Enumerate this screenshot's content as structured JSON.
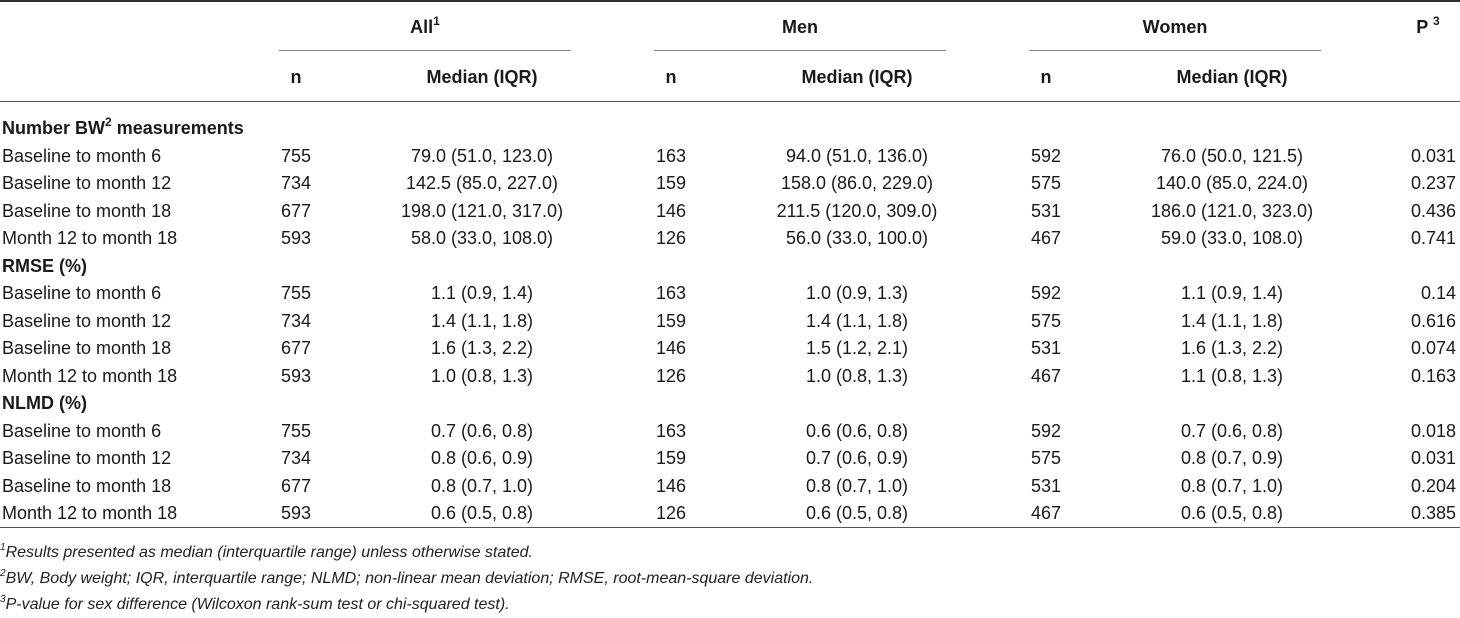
{
  "header": {
    "all": "All",
    "all_sup": "1",
    "men": "Men",
    "women": "Women",
    "p": "P",
    "p_sup": "3",
    "n": "n",
    "median": "Median (IQR)"
  },
  "sections": [
    {
      "title": "Number BW",
      "title_sup": "2",
      "title_suffix": " measurements",
      "rows": [
        {
          "label": "Baseline to month 6",
          "all_n": "755",
          "all_med": "79.0 (51.0, 123.0)",
          "men_n": "163",
          "men_med": "94.0 (51.0, 136.0)",
          "women_n": "592",
          "women_med": "76.0 (50.0, 121.5)",
          "p": "0.031"
        },
        {
          "label": "Baseline to month 12",
          "all_n": "734",
          "all_med": "142.5 (85.0, 227.0)",
          "men_n": "159",
          "men_med": "158.0 (86.0, 229.0)",
          "women_n": "575",
          "women_med": "140.0 (85.0, 224.0)",
          "p": "0.237"
        },
        {
          "label": "Baseline to month 18",
          "all_n": "677",
          "all_med": "198.0 (121.0, 317.0)",
          "men_n": "146",
          "men_med": "211.5 (120.0, 309.0)",
          "women_n": "531",
          "women_med": "186.0 (121.0, 323.0)",
          "p": "0.436"
        },
        {
          "label": "Month 12 to month 18",
          "all_n": "593",
          "all_med": "58.0 (33.0, 108.0)",
          "men_n": "126",
          "men_med": "56.0 (33.0, 100.0)",
          "women_n": "467",
          "women_med": "59.0 (33.0, 108.0)",
          "p": "0.741"
        }
      ]
    },
    {
      "title": "RMSE (%)",
      "rows": [
        {
          "label": "Baseline to month 6",
          "all_n": "755",
          "all_med": "1.1 (0.9, 1.4)",
          "men_n": "163",
          "men_med": "1.0 (0.9, 1.3)",
          "women_n": "592",
          "women_med": "1.1 (0.9, 1.4)",
          "p": "0.14"
        },
        {
          "label": "Baseline to month 12",
          "all_n": "734",
          "all_med": "1.4 (1.1, 1.8)",
          "men_n": "159",
          "men_med": "1.4 (1.1, 1.8)",
          "women_n": "575",
          "women_med": "1.4 (1.1, 1.8)",
          "p": "0.616"
        },
        {
          "label": "Baseline to month 18",
          "all_n": "677",
          "all_med": "1.6 (1.3, 2.2)",
          "men_n": "146",
          "men_med": "1.5 (1.2, 2.1)",
          "women_n": "531",
          "women_med": "1.6 (1.3, 2.2)",
          "p": "0.074"
        },
        {
          "label": "Month 12 to month 18",
          "all_n": "593",
          "all_med": "1.0 (0.8, 1.3)",
          "men_n": "126",
          "men_med": "1.0 (0.8, 1.3)",
          "women_n": "467",
          "women_med": "1.1 (0.8, 1.3)",
          "p": "0.163"
        }
      ]
    },
    {
      "title": "NLMD (%)",
      "rows": [
        {
          "label": "Baseline to month 6",
          "all_n": "755",
          "all_med": "0.7 (0.6, 0.8)",
          "men_n": "163",
          "men_med": "0.6 (0.6, 0.8)",
          "women_n": "592",
          "women_med": "0.7 (0.6, 0.8)",
          "p": "0.018"
        },
        {
          "label": "Baseline to month 12",
          "all_n": "734",
          "all_med": "0.8 (0.6, 0.9)",
          "men_n": "159",
          "men_med": "0.7 (0.6, 0.9)",
          "women_n": "575",
          "women_med": "0.8 (0.7, 0.9)",
          "p": "0.031"
        },
        {
          "label": "Baseline to month 18",
          "all_n": "677",
          "all_med": "0.8 (0.7, 1.0)",
          "men_n": "146",
          "men_med": "0.8 (0.7, 1.0)",
          "women_n": "531",
          "women_med": "0.8 (0.7, 1.0)",
          "p": "0.204"
        },
        {
          "label": "Month 12 to month 18",
          "all_n": "593",
          "all_med": "0.6 (0.5, 0.8)",
          "men_n": "126",
          "men_med": "0.6 (0.5, 0.8)",
          "women_n": "467",
          "women_med": "0.6 (0.5, 0.8)",
          "p": "0.385"
        }
      ]
    }
  ],
  "footnotes": [
    {
      "sup": "1",
      "text": "Results presented as median (interquartile range) unless otherwise stated."
    },
    {
      "sup": "2",
      "text": "BW, Body weight; IQR, interquartile range; NLMD; non-linear mean deviation; RMSE, root-mean-square deviation."
    },
    {
      "sup": "3",
      "text": "P-value for sex difference (Wilcoxon rank-sum test or chi-squared test)."
    }
  ]
}
